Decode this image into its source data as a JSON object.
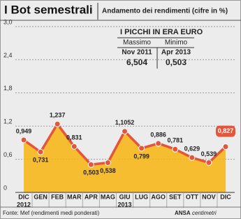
{
  "chart_data": {
    "type": "area-line",
    "title": "I Bot semestrali",
    "subtitle": "Andamento dei rendimenti (cifre in %)",
    "categories": [
      "DIC",
      "GEN",
      "FEB",
      "MAR",
      "APR",
      "MAG",
      "GIU",
      "LUG",
      "AGO",
      "SET",
      "OTT",
      "NOV",
      "DIC"
    ],
    "years": [
      "2012",
      null,
      null,
      null,
      null,
      null,
      "2013",
      null,
      null,
      null,
      null,
      null,
      null
    ],
    "values": [
      0.949,
      0.731,
      1.237,
      0.831,
      0.503,
      0.538,
      1.1052,
      0.799,
      0.886,
      0.781,
      0.629,
      0.539,
      0.827
    ],
    "value_labels": [
      "0,949",
      "0,731",
      "1,237",
      "0,831",
      "0,503",
      "0,538",
      "1,1052",
      "0,799",
      "0,886",
      "0,781",
      "0,629",
      "0,539",
      "0,827"
    ],
    "ylim": [
      0,
      3
    ],
    "yticks": [
      0,
      {
        "value": 0.6,
        "label": "0,6"
      },
      {
        "value": 1.2,
        "label": "1,2"
      },
      {
        "value": 1.8,
        "label": "1,8"
      },
      {
        "value": 2.4,
        "label": "2,4"
      },
      {
        "value": 3,
        "label": "3,0"
      }
    ],
    "grid": true,
    "line_color": "#e5553c",
    "area_color": "#f6b81a",
    "inset": {
      "title": "I PICCHI IN ERA EURO",
      "columns": [
        {
          "header": "Massimo",
          "date": "Nov 2011",
          "value": "6,504"
        },
        {
          "header": "Minimo",
          "date": "Apr 2013",
          "value": "0,503"
        }
      ]
    },
    "source": "Fonte: Mef (rendimenti medi ponderati)",
    "credit": [
      "ANSA",
      "centimetri"
    ]
  }
}
